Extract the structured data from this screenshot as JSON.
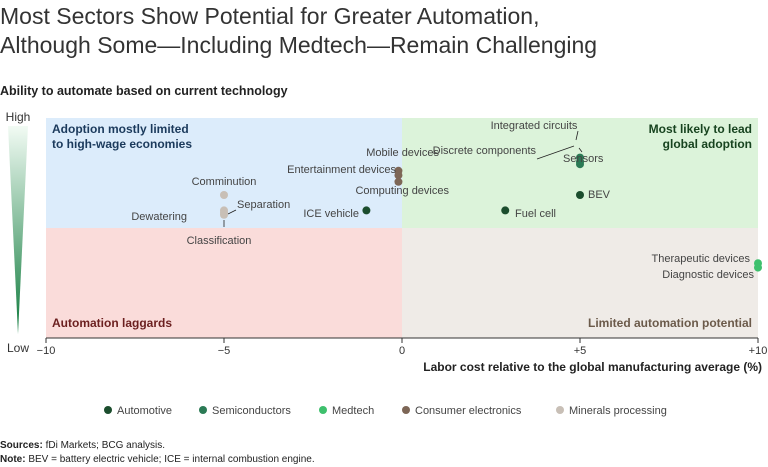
{
  "title_line1": "Most Sectors Show Potential for Greater Automation,",
  "title_line2": "Although Some—Including Medtech—Remain Challenging",
  "subtitle": "Ability to automate based on current technology",
  "sources_label": "Sources:",
  "sources_text": " fDi Markets; BCG analysis.",
  "note_label": "Note:",
  "note_text": " BEV = battery electric vehicle; ICE = internal combustion engine.",
  "chart_data": {
    "type": "scatter",
    "xlabel": "Labor cost relative to the global manufacturing average (%)",
    "ylabel_high": "High",
    "ylabel_low": "Low",
    "xlim": [
      -10,
      10
    ],
    "ylim": [
      0,
      10
    ],
    "x_ticks": [
      {
        "value": -10,
        "label": "−10"
      },
      {
        "value": -5,
        "label": "−5"
      },
      {
        "value": 0,
        "label": "0"
      },
      {
        "value": 5,
        "label": "+5"
      },
      {
        "value": 10,
        "label": "+10"
      }
    ],
    "quadrants": [
      {
        "name": "top-left",
        "lines": [
          "Adoption mostly limited",
          "to high-wage economies"
        ],
        "color": "#dcecfb",
        "text_color": "#1b3a5c"
      },
      {
        "name": "top-right",
        "lines": [
          "Most likely to lead",
          "global adoption"
        ],
        "color": "#dcf3da",
        "text_color": "#17431f"
      },
      {
        "name": "bottom-left",
        "lines": [
          "Automation laggards"
        ],
        "color": "#fadcda",
        "text_color": "#6b1f1f"
      },
      {
        "name": "bottom-right",
        "lines": [
          "Limited automation potential"
        ],
        "color": "#efebe7",
        "text_color": "#6b5a4a"
      }
    ],
    "series": [
      {
        "name": "Automotive",
        "color": "#1b4d2d"
      },
      {
        "name": "Semiconductors",
        "color": "#2b7a55"
      },
      {
        "name": "Medtech",
        "color": "#3ec06d"
      },
      {
        "name": "Consumer electronics",
        "color": "#7d6656"
      },
      {
        "name": "Minerals processing",
        "color": "#c8bfb6"
      }
    ],
    "points": [
      {
        "label": "Integrated circuits",
        "series": "Semiconductors",
        "x": 5.0,
        "y": 8.2
      },
      {
        "label": "Discrete components",
        "series": "Semiconductors",
        "x": 5.0,
        "y": 8.0
      },
      {
        "label": "Sensors",
        "series": "Semiconductors",
        "x": 5.0,
        "y": 7.9
      },
      {
        "label": "BEV",
        "series": "Automotive",
        "x": 5.0,
        "y": 6.5
      },
      {
        "label": "Fuel cell",
        "series": "Automotive",
        "x": 2.9,
        "y": 5.8
      },
      {
        "label": "ICE vehicle",
        "series": "Automotive",
        "x": -1.0,
        "y": 5.8
      },
      {
        "label": "Mobile devices",
        "series": "Consumer electronics",
        "x": -0.1,
        "y": 7.6
      },
      {
        "label": "Entertainment devices",
        "series": "Consumer electronics",
        "x": -0.1,
        "y": 7.4
      },
      {
        "label": "Computing devices",
        "series": "Consumer electronics",
        "x": -0.1,
        "y": 7.1
      },
      {
        "label": "Comminution",
        "series": "Minerals processing",
        "x": -5.0,
        "y": 6.5
      },
      {
        "label": "Separation",
        "series": "Minerals processing",
        "x": -5.0,
        "y": 5.8
      },
      {
        "label": "Dewatering",
        "series": "Minerals processing",
        "x": -5.0,
        "y": 5.7
      },
      {
        "label": "Classification",
        "series": "Minerals processing",
        "x": -5.0,
        "y": 5.6
      },
      {
        "label": "Therapeutic devices",
        "series": "Medtech",
        "x": 10.0,
        "y": 3.4
      },
      {
        "label": "Diagnostic devices",
        "series": "Medtech",
        "x": 10.0,
        "y": 3.2
      }
    ]
  }
}
